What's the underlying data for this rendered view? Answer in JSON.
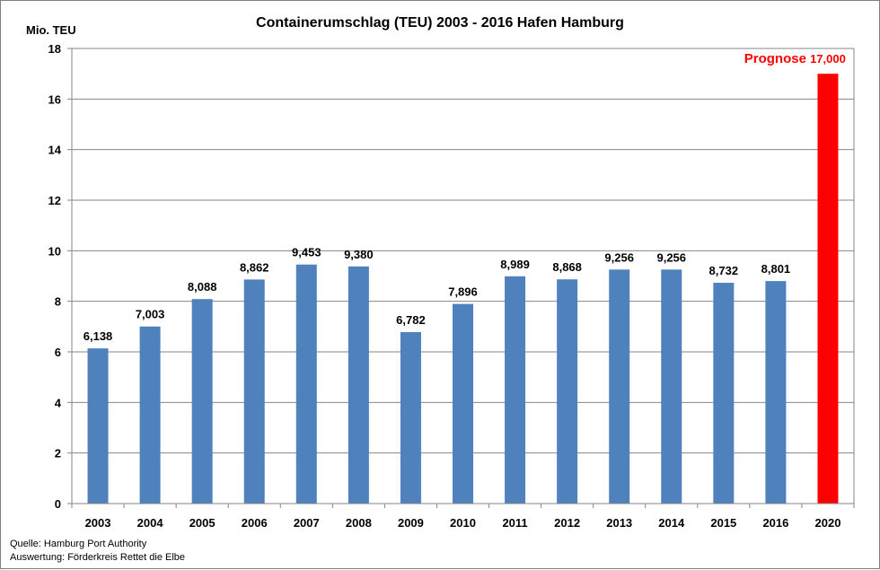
{
  "chart_data": {
    "type": "bar",
    "title": "Containerumschlag (TEU) 2003 - 2016 Hafen Hamburg",
    "ylabel": "Mio. TEU",
    "xlabel": "",
    "ylim": [
      0,
      18
    ],
    "yticks": [
      0,
      2,
      4,
      6,
      8,
      10,
      12,
      14,
      16,
      18
    ],
    "grid": true,
    "categories": [
      "2003",
      "2004",
      "2005",
      "2006",
      "2007",
      "2008",
      "2009",
      "2010",
      "2011",
      "2012",
      "2013",
      "2014",
      "2015",
      "2016",
      "2020"
    ],
    "values": [
      6.138,
      7.003,
      8.088,
      8.862,
      9.453,
      9.38,
      6.782,
      7.896,
      8.989,
      8.868,
      9.256,
      9.256,
      8.732,
      8.801,
      17.0
    ],
    "data_labels": [
      "6,138",
      "7,003",
      "8,088",
      "8,862",
      "9,453",
      "9,380",
      "6,782",
      "7,896",
      "8,989",
      "8,868",
      "9,256",
      "9,256",
      "8,732",
      "8,801",
      "17,000"
    ],
    "forecast_label": "Prognose",
    "forecast_index": 14,
    "colors": {
      "bar": "#4f81bd",
      "forecast": "#ff0000",
      "grid": "#868686"
    }
  },
  "source": {
    "line1": "Quelle: Hamburg Port Authority",
    "line2": "Auswertung: Förderkreis Rettet die Elbe"
  }
}
